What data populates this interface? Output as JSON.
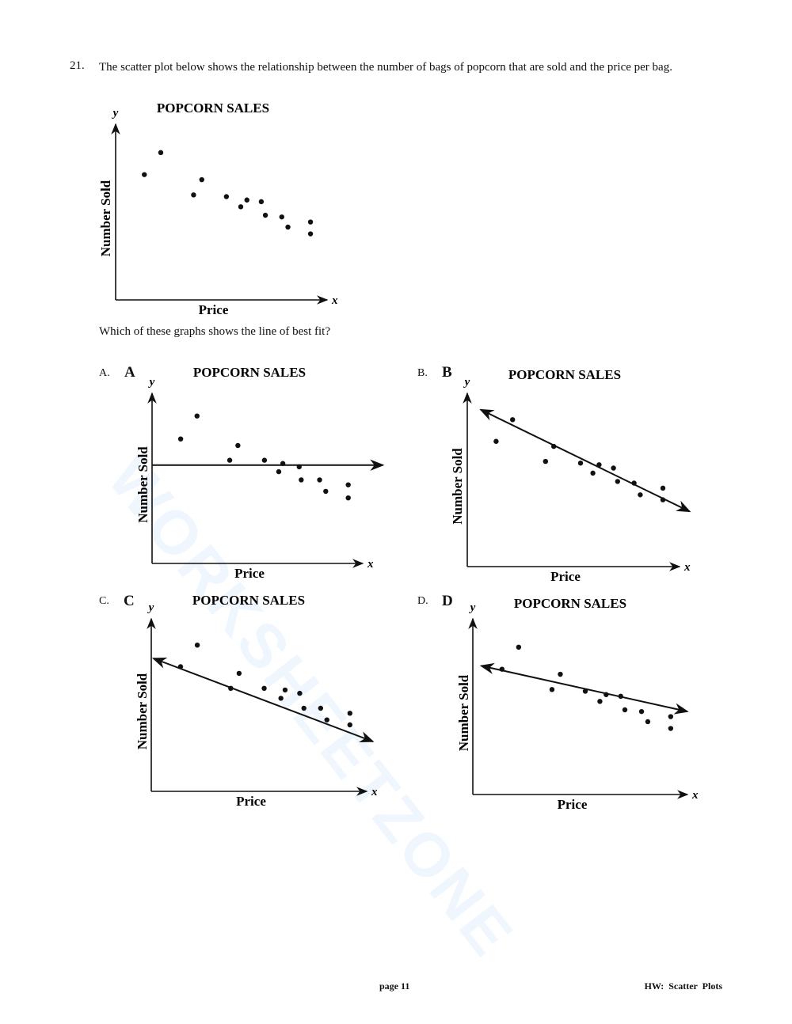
{
  "question": {
    "number": "21.",
    "text": "The scatter plot below shows the relationship between the number of bags of popcorn that are sold and the price per bag.",
    "prompt": "Which of these graphs shows the line of best fit?"
  },
  "watermark": "WORKSHEETZONE",
  "options": [
    {
      "marker": "A.",
      "letter": "A"
    },
    {
      "marker": "B.",
      "letter": "B"
    },
    {
      "marker": "C.",
      "letter": "C"
    },
    {
      "marker": "D.",
      "letter": "D"
    }
  ],
  "footer": {
    "page": "page 11",
    "title": "HW:  Scatter  Plots"
  },
  "chart_data": [
    {
      "id": "main",
      "type": "scatter",
      "title": "POPCORN SALES",
      "xlabel": "Price",
      "ylabel": "Number Sold",
      "x_axis_symbol": "x",
      "y_axis_symbol": "y",
      "xlim": [
        0,
        100
      ],
      "ylim": [
        0,
        100
      ],
      "grid": false,
      "points": [
        [
          14,
          74
        ],
        [
          22,
          87
        ],
        [
          38,
          62
        ],
        [
          42,
          71
        ],
        [
          54,
          61
        ],
        [
          61,
          55
        ],
        [
          64,
          59
        ],
        [
          71,
          58
        ],
        [
          73,
          50
        ],
        [
          81,
          49
        ],
        [
          84,
          43
        ],
        [
          95,
          46
        ],
        [
          95,
          39
        ]
      ]
    },
    {
      "id": "A",
      "type": "scatter",
      "title": "POPCORN SALES",
      "xlabel": "Price",
      "ylabel": "Number Sold",
      "x_axis_symbol": "x",
      "y_axis_symbol": "y",
      "xlim": [
        0,
        100
      ],
      "ylim": [
        0,
        100
      ],
      "grid": false,
      "points": [
        [
          14,
          76
        ],
        [
          22,
          90
        ],
        [
          38,
          63
        ],
        [
          42,
          72
        ],
        [
          55,
          63
        ],
        [
          62,
          56
        ],
        [
          64,
          61
        ],
        [
          72,
          59
        ],
        [
          73,
          51
        ],
        [
          82,
          51
        ],
        [
          85,
          44
        ],
        [
          96,
          48
        ],
        [
          96,
          40
        ]
      ],
      "line": {
        "from": [
          0,
          60
        ],
        "to": [
          113,
          60
        ],
        "arrows": "end"
      }
    },
    {
      "id": "B",
      "type": "scatter",
      "title": "POPCORN SALES",
      "xlabel": "Price",
      "ylabel": "Number Sold",
      "x_axis_symbol": "x",
      "y_axis_symbol": "y",
      "xlim": [
        0,
        100
      ],
      "ylim": [
        0,
        100
      ],
      "grid": false,
      "points": [
        [
          14,
          75
        ],
        [
          22,
          88
        ],
        [
          38,
          63
        ],
        [
          42,
          72
        ],
        [
          55,
          62
        ],
        [
          61,
          56
        ],
        [
          64,
          61
        ],
        [
          71,
          59
        ],
        [
          73,
          51
        ],
        [
          81,
          50
        ],
        [
          84,
          43
        ],
        [
          95,
          47
        ],
        [
          95,
          40
        ]
      ],
      "line": {
        "from": [
          6.5,
          94
        ],
        "to": [
          108,
          33
        ],
        "arrows": "both"
      }
    },
    {
      "id": "C",
      "type": "scatter",
      "title": "POPCORN SALES",
      "xlabel": "Price",
      "ylabel": "Number Sold",
      "x_axis_symbol": "x",
      "y_axis_symbol": "y",
      "xlim": [
        0,
        100
      ],
      "ylim": [
        0,
        100
      ],
      "grid": false,
      "points": [
        [
          14,
          75
        ],
        [
          22,
          88
        ],
        [
          38,
          62
        ],
        [
          42,
          71
        ],
        [
          54,
          62
        ],
        [
          62,
          56
        ],
        [
          64,
          61
        ],
        [
          71,
          59
        ],
        [
          73,
          50
        ],
        [
          81,
          50
        ],
        [
          84,
          43
        ],
        [
          95,
          47
        ],
        [
          95,
          40
        ]
      ],
      "line": {
        "from": [
          1,
          80
        ],
        "to": [
          106,
          30
        ],
        "arrows": "both"
      }
    },
    {
      "id": "D",
      "type": "scatter",
      "title": "POPCORN SALES",
      "xlabel": "Price",
      "ylabel": "Number Sold",
      "x_axis_symbol": "x",
      "y_axis_symbol": "y",
      "xlim": [
        0,
        100
      ],
      "ylim": [
        0,
        100
      ],
      "grid": false,
      "points": [
        [
          14,
          74
        ],
        [
          22,
          87
        ],
        [
          38,
          62
        ],
        [
          42,
          71
        ],
        [
          54,
          61
        ],
        [
          61,
          55
        ],
        [
          64,
          59
        ],
        [
          71,
          58
        ],
        [
          73,
          50
        ],
        [
          81,
          49
        ],
        [
          84,
          43
        ],
        [
          95,
          46
        ],
        [
          95,
          39
        ]
      ],
      "line": {
        "from": [
          4,
          76
        ],
        "to": [
          103,
          49
        ],
        "arrows": "both"
      }
    }
  ]
}
